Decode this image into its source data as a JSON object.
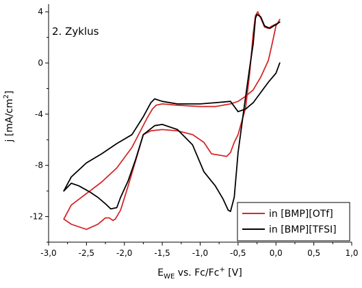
{
  "chart_data": {
    "type": "line",
    "title": "",
    "annotation": "2. Zyklus",
    "xlabel": {
      "main": "E",
      "sub": "WE",
      "rest": " vs. Fc/Fc",
      "sup": "+",
      "unit": " [V]"
    },
    "ylabel": {
      "main": "j [mA/cm",
      "sup": "2",
      "unit": "]"
    },
    "xlim": [
      -3.0,
      1.0
    ],
    "ylim": [
      -14.0,
      4.6
    ],
    "xticks": [
      {
        "value": -3.0,
        "label": "-3,0"
      },
      {
        "value": -2.5,
        "label": "-2,5"
      },
      {
        "value": -2.0,
        "label": "-2,0"
      },
      {
        "value": -1.5,
        "label": "-1,5"
      },
      {
        "value": -1.0,
        "label": "-1,0"
      },
      {
        "value": -0.5,
        "label": "-0,5"
      },
      {
        "value": 0.0,
        "label": "0,0"
      },
      {
        "value": 0.5,
        "label": "0,5"
      },
      {
        "value": 1.0,
        "label": "1,0"
      }
    ],
    "yticks": [
      {
        "value": 4,
        "label": "4"
      },
      {
        "value": 0,
        "label": "0"
      },
      {
        "value": -4,
        "label": "-4"
      },
      {
        "value": -8,
        "label": "-8"
      },
      {
        "value": -12,
        "label": "-12"
      }
    ],
    "grid": false,
    "legend_position": "bottom-right",
    "series": [
      {
        "name": "in [BMP][OTf]",
        "color": "#d62728",
        "points": [
          [
            0.05,
            3.4
          ],
          [
            0.0,
            2.9
          ],
          [
            -0.05,
            1.5
          ],
          [
            -0.1,
            0.2
          ],
          [
            -0.2,
            -1.1
          ],
          [
            -0.3,
            -2.1
          ],
          [
            -0.4,
            -2.6
          ],
          [
            -0.5,
            -3.0
          ],
          [
            -0.6,
            -3.2
          ],
          [
            -0.8,
            -3.4
          ],
          [
            -1.0,
            -3.4
          ],
          [
            -1.3,
            -3.3
          ],
          [
            -1.5,
            -3.2
          ],
          [
            -1.58,
            -3.3
          ],
          [
            -1.63,
            -3.6
          ],
          [
            -1.7,
            -4.3
          ],
          [
            -1.9,
            -6.6
          ],
          [
            -2.1,
            -8.2
          ],
          [
            -2.3,
            -9.3
          ],
          [
            -2.5,
            -10.2
          ],
          [
            -2.7,
            -11.1
          ],
          [
            -2.8,
            -12.2
          ],
          [
            -2.7,
            -12.6
          ],
          [
            -2.5,
            -13.0
          ],
          [
            -2.35,
            -12.6
          ],
          [
            -2.25,
            -12.1
          ],
          [
            -2.2,
            -12.1
          ],
          [
            -2.15,
            -12.3
          ],
          [
            -2.12,
            -12.2
          ],
          [
            -2.05,
            -11.5
          ],
          [
            -1.95,
            -9.6
          ],
          [
            -1.85,
            -7.6
          ],
          [
            -1.75,
            -5.6
          ],
          [
            -1.65,
            -5.3
          ],
          [
            -1.5,
            -5.2
          ],
          [
            -1.3,
            -5.3
          ],
          [
            -1.1,
            -5.6
          ],
          [
            -0.95,
            -6.2
          ],
          [
            -0.85,
            -7.1
          ],
          [
            -0.75,
            -7.2
          ],
          [
            -0.65,
            -7.3
          ],
          [
            -0.6,
            -7.0
          ],
          [
            -0.55,
            -6.2
          ],
          [
            -0.5,
            -5.6
          ],
          [
            -0.4,
            -3.5
          ],
          [
            -0.35,
            -1.0
          ],
          [
            -0.3,
            2.3
          ],
          [
            -0.27,
            3.7
          ],
          [
            -0.24,
            4.0
          ],
          [
            -0.2,
            3.5
          ],
          [
            -0.15,
            2.8
          ],
          [
            -0.1,
            2.7
          ],
          [
            -0.05,
            2.9
          ],
          [
            0.02,
            3.1
          ],
          [
            0.05,
            3.4
          ]
        ]
      },
      {
        "name": "in [BMP][TFSI]",
        "color": "#000000",
        "points": [
          [
            0.05,
            0.0
          ],
          [
            0.0,
            -0.8
          ],
          [
            -0.1,
            -1.5
          ],
          [
            -0.2,
            -2.3
          ],
          [
            -0.3,
            -3.1
          ],
          [
            -0.4,
            -3.6
          ],
          [
            -0.5,
            -3.8
          ],
          [
            -0.6,
            -3.0
          ],
          [
            -0.8,
            -3.1
          ],
          [
            -1.0,
            -3.2
          ],
          [
            -1.3,
            -3.2
          ],
          [
            -1.5,
            -3.0
          ],
          [
            -1.6,
            -2.8
          ],
          [
            -1.65,
            -3.1
          ],
          [
            -1.75,
            -4.2
          ],
          [
            -1.9,
            -5.6
          ],
          [
            -2.1,
            -6.3
          ],
          [
            -2.3,
            -7.1
          ],
          [
            -2.5,
            -7.8
          ],
          [
            -2.7,
            -8.9
          ],
          [
            -2.8,
            -10.0
          ],
          [
            -2.7,
            -9.4
          ],
          [
            -2.6,
            -9.6
          ],
          [
            -2.45,
            -10.1
          ],
          [
            -2.35,
            -10.5
          ],
          [
            -2.25,
            -11.0
          ],
          [
            -2.18,
            -11.4
          ],
          [
            -2.1,
            -11.3
          ],
          [
            -2.05,
            -10.5
          ],
          [
            -1.95,
            -9.2
          ],
          [
            -1.85,
            -7.5
          ],
          [
            -1.75,
            -5.6
          ],
          [
            -1.6,
            -4.9
          ],
          [
            -1.5,
            -4.8
          ],
          [
            -1.3,
            -5.2
          ],
          [
            -1.1,
            -6.4
          ],
          [
            -0.95,
            -8.5
          ],
          [
            -0.8,
            -9.6
          ],
          [
            -0.7,
            -10.6
          ],
          [
            -0.63,
            -11.5
          ],
          [
            -0.6,
            -11.6
          ],
          [
            -0.55,
            -10.5
          ],
          [
            -0.5,
            -7.0
          ],
          [
            -0.42,
            -3.5
          ],
          [
            -0.35,
            -0.5
          ],
          [
            -0.3,
            1.5
          ],
          [
            -0.27,
            3.5
          ],
          [
            -0.25,
            3.8
          ],
          [
            -0.2,
            3.6
          ],
          [
            -0.15,
            2.9
          ],
          [
            -0.08,
            2.7
          ],
          [
            0.0,
            3.0
          ],
          [
            0.05,
            3.2
          ]
        ]
      }
    ]
  }
}
